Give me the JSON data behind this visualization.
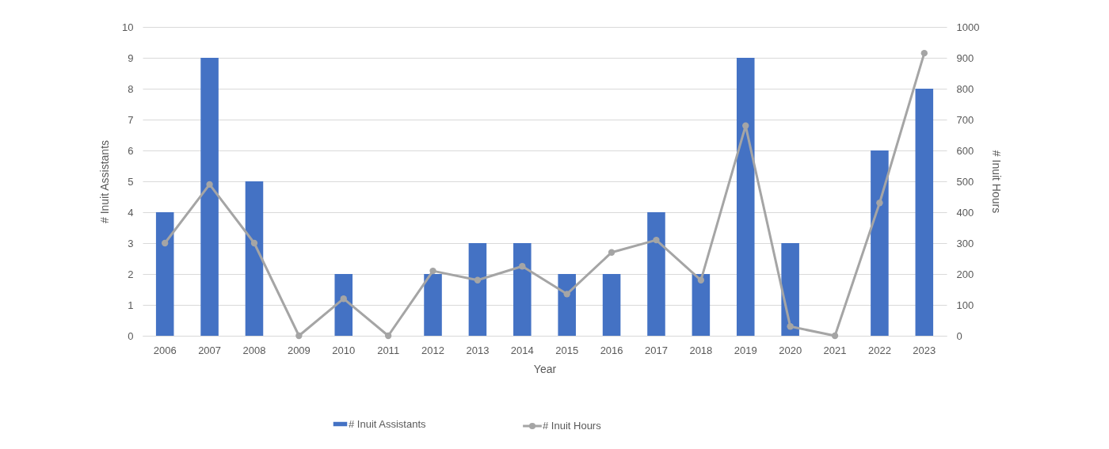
{
  "chart_data": {
    "type": "bar",
    "categories": [
      "2006",
      "2007",
      "2008",
      "2009",
      "2010",
      "2011",
      "2012",
      "2013",
      "2014",
      "2015",
      "2016",
      "2017",
      "2018",
      "2019",
      "2020",
      "2021",
      "2022",
      "2023"
    ],
    "series": [
      {
        "name": "# Inuit Assistants",
        "color": "#4472c4",
        "values": [
          4,
          9,
          5,
          0,
          2,
          0,
          2,
          3,
          3,
          2,
          2,
          4,
          2,
          9,
          3,
          0,
          6,
          8
        ]
      },
      {
        "name": "# Inuit Hours",
        "type": "line",
        "axis": "y2",
        "color": "#a5a5a5",
        "marker": "circle",
        "line_style": "solid",
        "values": [
          300,
          490,
          300,
          0,
          120,
          0,
          210,
          180,
          225,
          135,
          270,
          310,
          180,
          680,
          30,
          0,
          430,
          915
        ]
      }
    ],
    "xlabel": "Year",
    "ylabel": "# Inuit Assistants",
    "y2label": "# Inuit Hours",
    "ylim": [
      0,
      10
    ],
    "yticks": [
      0,
      1,
      2,
      3,
      4,
      5,
      6,
      7,
      8,
      9,
      10
    ],
    "y2lim": [
      0,
      1000
    ],
    "y2ticks": [
      0,
      100,
      200,
      300,
      400,
      500,
      600,
      700,
      800,
      900,
      1000
    ],
    "grid": "y",
    "legend": "bottom"
  }
}
